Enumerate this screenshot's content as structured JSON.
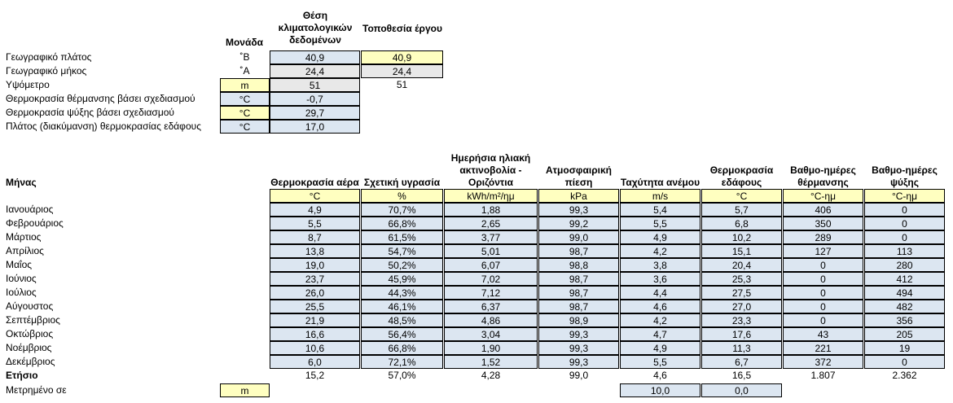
{
  "top": {
    "headers": {
      "unit": "Μονάδα",
      "climate_site": "Θέση κλιματολογικών δεδομένων",
      "project_site": "Τοποθεσία έργου"
    },
    "rows": [
      {
        "label": "Γεωγραφικό πλάτος",
        "unit": "˚Β",
        "climate": "40,9",
        "project": "40,9"
      },
      {
        "label": "Γεωγραφικό μήκος",
        "unit": "˚Α",
        "climate": "24,4",
        "project": "24,4"
      },
      {
        "label": "Υψόμετρο",
        "unit": "m",
        "climate": "51",
        "project": "51"
      },
      {
        "label": "Θερμοκρασία θέρμανσης βάσει σχεδιασμού",
        "unit": "°C",
        "climate": "-0,7"
      },
      {
        "label": "Θερμοκρασία ψύξης βάσει σχεδιασμού",
        "unit": "°C",
        "climate": "29,7"
      },
      {
        "label": "Πλάτος (διακύμανση) θερμοκρασίας εδάφους",
        "unit": "°C",
        "climate": "17,0"
      }
    ]
  },
  "monthly": {
    "month_header": "Μήνας",
    "columns": [
      {
        "header": "Θερμοκρασία αέρα",
        "unit": "°C"
      },
      {
        "header": "Σχετική υγρασία",
        "unit": "%"
      },
      {
        "header": "Ημερήσια ηλιακή ακτινοβολία - Οριζόντια",
        "unit": "kWh/m²/ημ"
      },
      {
        "header": "Ατμοσφαιρική πίεση",
        "unit": "kPa"
      },
      {
        "header": "Ταχύτητα ανέμου",
        "unit": "m/s"
      },
      {
        "header": "Θερμοκρασία εδάφους",
        "unit": "°C"
      },
      {
        "header": "Βαθμο-ημέρες θέρμανσης",
        "unit": "°C-ημ"
      },
      {
        "header": "Βαθμο-ημέρες ψύξης",
        "unit": "°C-ημ"
      }
    ],
    "rows": [
      {
        "month": "Ιανουάριος",
        "values": [
          "4,9",
          "70,7%",
          "1,88",
          "99,3",
          "5,4",
          "5,7",
          "406",
          "0"
        ]
      },
      {
        "month": "Φεβρουάριος",
        "values": [
          "5,5",
          "66,8%",
          "2,65",
          "99,2",
          "5,5",
          "6,8",
          "350",
          "0"
        ]
      },
      {
        "month": "Μάρτιος",
        "values": [
          "8,7",
          "61,5%",
          "3,77",
          "99,0",
          "4,9",
          "10,2",
          "289",
          "0"
        ]
      },
      {
        "month": "Απρίλιος",
        "values": [
          "13,8",
          "54,7%",
          "5,01",
          "98,7",
          "4,2",
          "15,1",
          "127",
          "113"
        ]
      },
      {
        "month": "Μαΐος",
        "values": [
          "19,0",
          "50,2%",
          "6,07",
          "98,8",
          "3,8",
          "20,4",
          "0",
          "280"
        ]
      },
      {
        "month": "Ιούνιος",
        "values": [
          "23,7",
          "45,9%",
          "7,02",
          "98,7",
          "3,6",
          "25,3",
          "0",
          "412"
        ]
      },
      {
        "month": "Ιούλιος",
        "values": [
          "26,0",
          "44,3%",
          "7,12",
          "98,7",
          "4,4",
          "27,5",
          "0",
          "494"
        ]
      },
      {
        "month": "Αύγουστος",
        "values": [
          "25,5",
          "46,1%",
          "6,37",
          "98,7",
          "4,6",
          "27,0",
          "0",
          "482"
        ]
      },
      {
        "month": "Σεπτέμβριος",
        "values": [
          "21,9",
          "48,5%",
          "4,86",
          "98,9",
          "4,2",
          "23,3",
          "0",
          "356"
        ]
      },
      {
        "month": "Οκτώβριος",
        "values": [
          "16,6",
          "56,4%",
          "3,04",
          "99,3",
          "4,7",
          "17,6",
          "43",
          "205"
        ]
      },
      {
        "month": "Νοέμβριος",
        "values": [
          "10,6",
          "66,8%",
          "1,90",
          "99,3",
          "4,9",
          "11,3",
          "221",
          "19"
        ]
      },
      {
        "month": "Δεκέμβριος",
        "values": [
          "6,0",
          "72,1%",
          "1,52",
          "99,3",
          "5,5",
          "6,7",
          "372",
          "0"
        ]
      }
    ],
    "annual": {
      "label": "Ετήσιο",
      "values": [
        "15,2",
        "57,0%",
        "4,28",
        "99,0",
        "4,6",
        "16,5",
        "1.807",
        "2.362"
      ]
    },
    "measured": {
      "label": "Μετρημένο σε",
      "unit": "m",
      "wind": "10,0",
      "ground": "0,0"
    }
  },
  "colors": {
    "input_blue": "#dce6f1",
    "input_yellow": "#ffffc0",
    "calc_gray": "#e8e8e8"
  }
}
